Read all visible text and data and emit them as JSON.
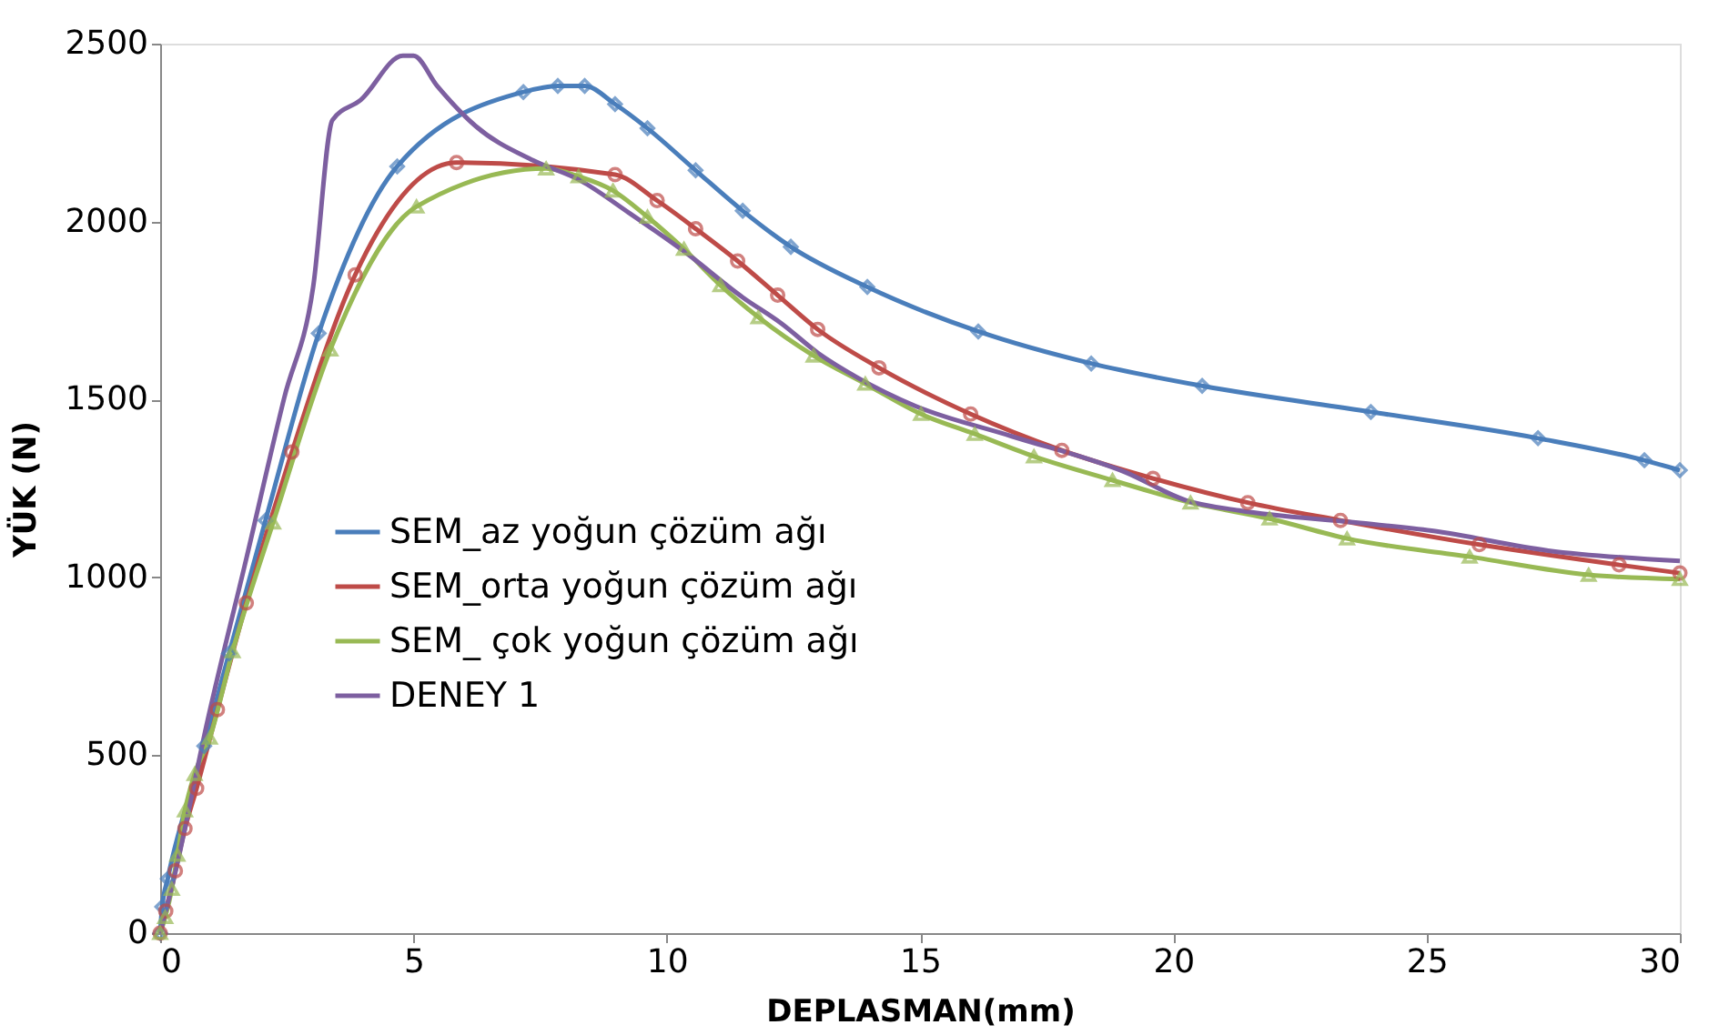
{
  "chart_data": {
    "type": "line",
    "xlabel": "DEPLASMAN(mm)",
    "ylabel": "YÜK (N)",
    "xlim": [
      0,
      30
    ],
    "ylim": [
      0,
      2500
    ],
    "xticks": [
      0,
      5,
      10,
      15,
      20,
      25,
      30
    ],
    "yticks": [
      0,
      500,
      1000,
      1500,
      2000,
      2500
    ],
    "grid": false,
    "legend": "bottom left",
    "line_style": "solid",
    "series": [
      {
        "name": "SEM_az yoğun çözüm ağı",
        "color": "#4a7ebb",
        "marker": "diamond",
        "x": [
          0,
          0.04,
          0.15,
          0.87,
          1.36,
          2.08,
          3.13,
          4.68,
          7.17,
          7.85,
          8.38,
          8.98,
          9.62,
          10.57,
          11.5,
          12.45,
          13.96,
          16.15,
          18.38,
          20.57,
          23.9,
          27.2,
          29.3,
          30
        ],
        "values": [
          0,
          74,
          153,
          526,
          786,
          1160,
          1686,
          2155,
          2364,
          2381,
          2381,
          2330,
          2262,
          2144,
          2030,
          1929,
          1816,
          1691,
          1601,
          1538,
          1465,
          1391,
          1329,
          1301
        ]
      },
      {
        "name": "SEM_orta yoğun çözüm ağı",
        "color": "#be4b48",
        "marker": "circle",
        "x": [
          0,
          0.11,
          0.3,
          0.49,
          0.72,
          1.13,
          1.7,
          2.6,
          3.85,
          5.85,
          8.98,
          9.81,
          10.57,
          11.4,
          12.19,
          12.98,
          14.19,
          16.0,
          17.8,
          19.6,
          21.47,
          23.3,
          26.04,
          28.8,
          30
        ],
        "values": [
          0,
          62,
          175,
          294,
          407,
          628,
          928,
          1352,
          1850,
          2166,
          2132,
          2059,
          1980,
          1889,
          1793,
          1697,
          1589,
          1459,
          1357,
          1278,
          1210,
          1160,
          1092,
          1035,
          1012
        ]
      },
      {
        "name": "SEM_ çok yoğun çözüm ağı",
        "color": "#98b954",
        "marker": "triangle",
        "x": [
          0,
          0.1,
          0.23,
          0.34,
          0.49,
          0.68,
          0.98,
          1.43,
          2.23,
          3.36,
          5.06,
          7.62,
          8.26,
          8.94,
          9.62,
          10.34,
          11.06,
          11.81,
          12.9,
          13.92,
          15.02,
          16.08,
          17.25,
          18.8,
          20.34,
          21.9,
          23.43,
          25.85,
          28.2,
          30
        ],
        "values": [
          0,
          45,
          124,
          220,
          345,
          447,
          549,
          792,
          1154,
          1640,
          2042,
          2149,
          2127,
          2087,
          2013,
          1923,
          1821,
          1731,
          1623,
          1544,
          1459,
          1403,
          1340,
          1273,
          1210,
          1165,
          1109,
          1058,
          1007,
          995
        ]
      },
      {
        "name": "DENEY 1",
        "color": "#7d5fa0",
        "marker": "none",
        "x": [
          0,
          0.26,
          0.94,
          1.7,
          2.45,
          3.02,
          3.4,
          3.96,
          4.79,
          5.0,
          5.47,
          6.23,
          7.36,
          8.3,
          9.25,
          10.38,
          11.5,
          12.26,
          13.0,
          13.77,
          14.9,
          16.8,
          19.06,
          20.26,
          21.3,
          23.6,
          25.1,
          27.4,
          30
        ],
        "values": [
          0,
          147,
          600,
          1052,
          1505,
          1816,
          2285,
          2342,
          2466,
          2466,
          2381,
          2268,
          2172,
          2115,
          2025,
          1912,
          1787,
          1714,
          1629,
          1561,
          1482,
          1397,
          1295,
          1216,
          1188,
          1154,
          1131,
          1075,
          1046
        ]
      }
    ]
  }
}
